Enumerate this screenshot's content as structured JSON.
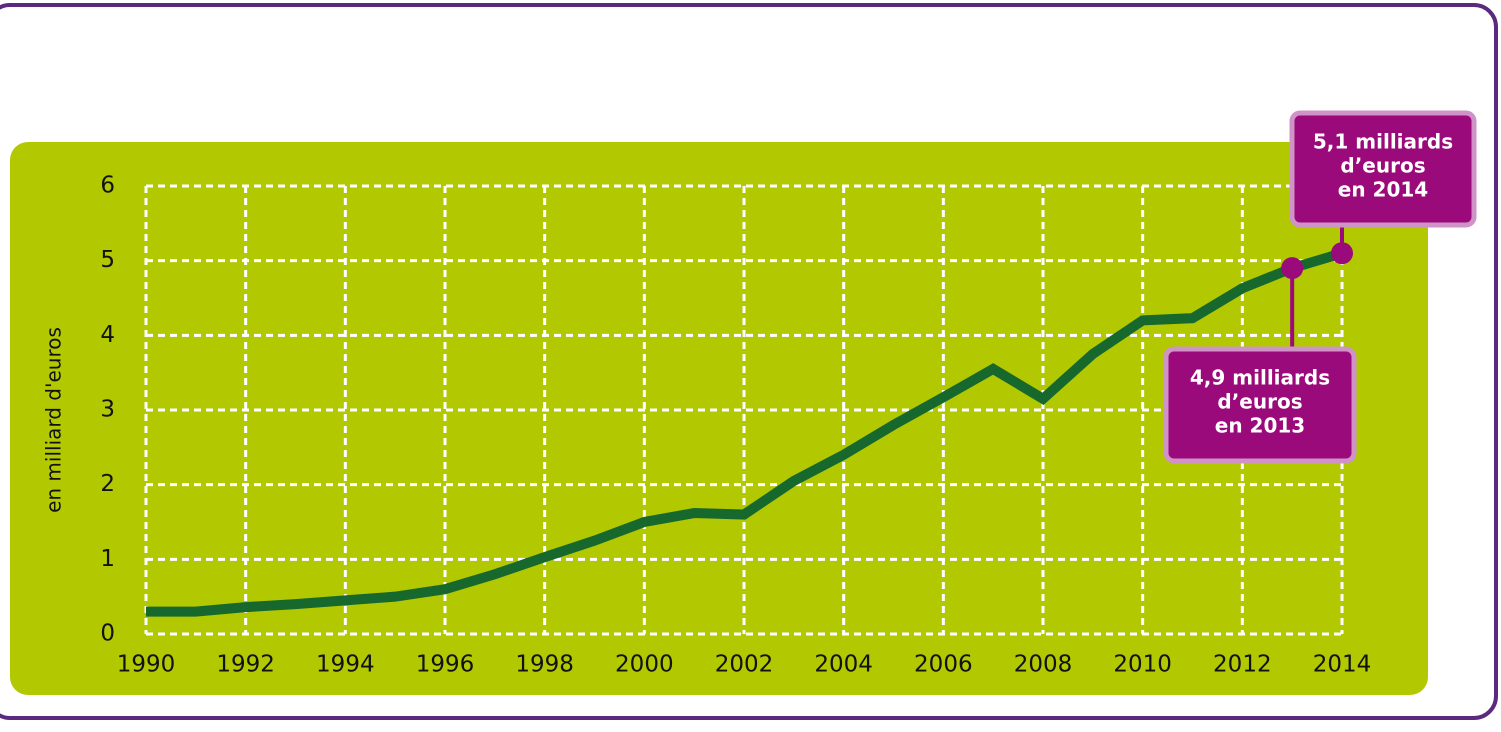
{
  "chart_data": {
    "type": "line",
    "y_label": "en milliard d'euros",
    "x": [
      1990,
      1991,
      1992,
      1993,
      1994,
      1995,
      1996,
      1997,
      1998,
      1999,
      2000,
      2001,
      2002,
      2003,
      2004,
      2005,
      2006,
      2007,
      2008,
      2009,
      2010,
      2011,
      2012,
      2013,
      2014
    ],
    "series": [
      {
        "color": "#17682c",
        "values": [
          0.3,
          0.3,
          0.36,
          0.4,
          0.45,
          0.5,
          0.6,
          0.8,
          1.03,
          1.25,
          1.5,
          1.62,
          1.6,
          2.05,
          2.4,
          2.8,
          3.17,
          3.55,
          3.15,
          3.75,
          4.2,
          4.23,
          4.63,
          4.9,
          5.1
        ]
      }
    ],
    "xlim": [
      1990,
      2014
    ],
    "xticks": [
      1990,
      1992,
      1994,
      1996,
      1998,
      2000,
      2002,
      2004,
      2006,
      2008,
      2010,
      2012,
      2014
    ],
    "ylim": [
      0,
      6
    ],
    "yticks": [
      0,
      1,
      2,
      3,
      4,
      5,
      6
    ],
    "grid": true,
    "annotations": [
      {
        "x": 2014,
        "text": [
          "5,1 milliards",
          "d’euros",
          "en 2014"
        ]
      },
      {
        "x": 2013,
        "text": [
          "4,9 milliards",
          "d’euros",
          "en 2013"
        ]
      }
    ]
  }
}
